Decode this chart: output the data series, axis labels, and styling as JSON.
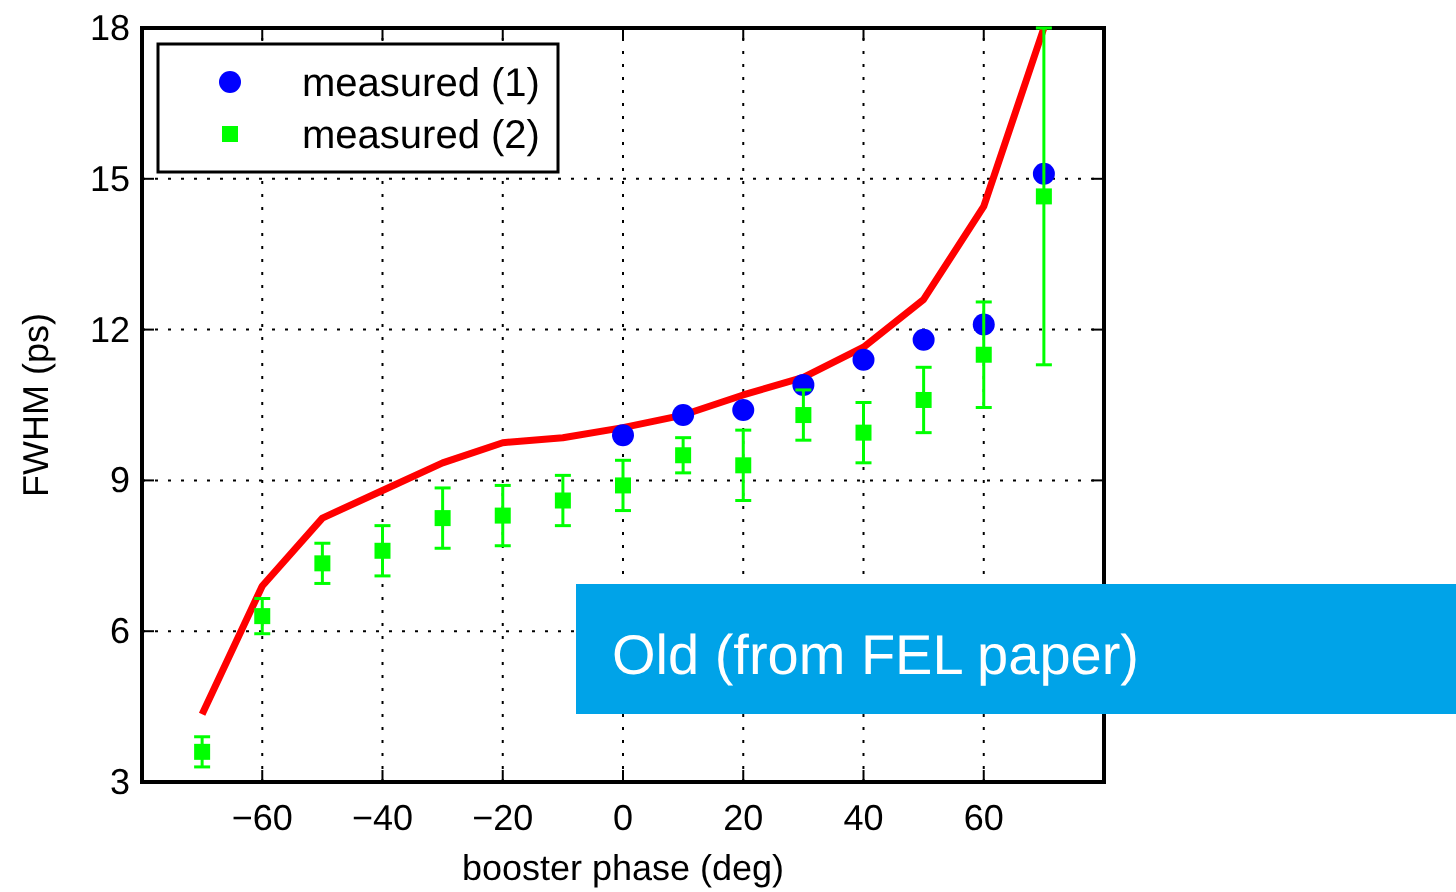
{
  "chart_data": {
    "type": "line",
    "xlabel": "booster phase (deg)",
    "ylabel": "FWHM (ps)",
    "xlim": [
      -80,
      80
    ],
    "ylim": [
      3,
      18
    ],
    "xticks": [
      -60,
      -40,
      -20,
      0,
      20,
      40,
      60
    ],
    "yticks": [
      3,
      6,
      9,
      12,
      15,
      18
    ],
    "grid": true,
    "legend": "top left",
    "annotations": [
      "Old (from FEL paper)"
    ],
    "series": [
      {
        "color": "#ff0000",
        "x": [
          -70,
          -60,
          -50,
          -40,
          -30,
          -20,
          -10,
          0,
          10,
          20,
          30,
          40,
          50,
          60,
          70
        ],
        "values": [
          4.35,
          6.9,
          8.25,
          8.8,
          9.35,
          9.75,
          9.85,
          10.05,
          10.3,
          10.7,
          11.05,
          11.65,
          12.6,
          14.45,
          18
        ]
      },
      {
        "type": "scatter",
        "name": "measured (1)",
        "color": "#0000ff",
        "marker": "circle",
        "x": [
          0,
          10,
          20,
          30,
          40,
          50,
          60,
          70
        ],
        "values": [
          9.9,
          10.3,
          10.4,
          10.9,
          11.4,
          11.8,
          12.1,
          15.1
        ]
      },
      {
        "type": "scatter",
        "name": "measured (2)",
        "color": "#00ff00",
        "marker": "square",
        "x": [
          -70,
          -60,
          -50,
          -40,
          -30,
          -20,
          -10,
          0,
          10,
          20,
          30,
          40,
          50,
          60,
          70
        ],
        "values": [
          3.6,
          6.3,
          7.35,
          7.6,
          8.25,
          8.3,
          8.6,
          8.9,
          9.5,
          9.3,
          10.3,
          9.95,
          10.6,
          11.5,
          14.65
        ],
        "errors": [
          0.3,
          0.35,
          0.4,
          0.5,
          0.6,
          0.6,
          0.5,
          0.5,
          0.35,
          0.7,
          0.5,
          0.6,
          0.65,
          1.05,
          [
            11.3,
            18
          ]
        ]
      }
    ]
  }
}
